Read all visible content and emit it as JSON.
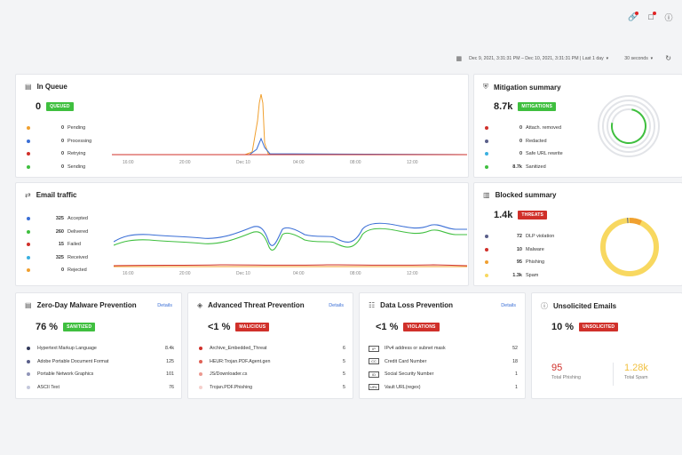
{
  "top_icons": [
    "link-icon",
    "notification-icon",
    "help-icon"
  ],
  "toolbar": {
    "range": "Dec 9, 2021, 3:31:31 PM – Dec 10, 2021, 3:31:31 PM | Last 1 day",
    "interval": "30 seconds"
  },
  "queue": {
    "title": "In Queue",
    "value": "0",
    "badge": "QUEUED",
    "badge_color": "#3fbf3f",
    "legend": [
      {
        "v": "0",
        "l": "Pending",
        "c": "#f0a030"
      },
      {
        "v": "0",
        "l": "Processing",
        "c": "#3b6fd6"
      },
      {
        "v": "0",
        "l": "Retrying",
        "c": "#d0302a"
      },
      {
        "v": "0",
        "l": "Sending",
        "c": "#3fbf3f"
      }
    ],
    "xticks": [
      "16:00",
      "20:00",
      "Dec 10",
      "04:00",
      "08:00",
      "12:00"
    ]
  },
  "mitigation": {
    "title": "Mitigation summary",
    "value": "8.7k",
    "badge": "MITIGATIONS",
    "badge_color": "#3fbf3f",
    "legend": [
      {
        "v": "0",
        "l": "Attach. removed",
        "c": "#d0302a"
      },
      {
        "v": "0",
        "l": "Redacted",
        "c": "#5a5f8a"
      },
      {
        "v": "0",
        "l": "Safe URL rewrite",
        "c": "#3ab0e0"
      },
      {
        "v": "8.7k",
        "l": "Sanitized",
        "c": "#3fbf3f"
      }
    ]
  },
  "traffic": {
    "title": "Email traffic",
    "legend": [
      {
        "v": "325",
        "l": "Accepted",
        "c": "#3b6fd6"
      },
      {
        "v": "260",
        "l": "Delivered",
        "c": "#3fbf3f"
      },
      {
        "v": "15",
        "l": "Failed",
        "c": "#d0302a"
      },
      {
        "v": "325",
        "l": "Received",
        "c": "#3ab0e0"
      },
      {
        "v": "0",
        "l": "Rejected",
        "c": "#f0a030"
      }
    ],
    "xticks": [
      "16:00",
      "20:00",
      "Dec 10",
      "04:00",
      "08:00",
      "12:00"
    ]
  },
  "blocked": {
    "title": "Blocked summary",
    "value": "1.4k",
    "badge": "THREATS",
    "badge_color": "#d0302a",
    "legend": [
      {
        "v": "72",
        "l": "DLP violation",
        "c": "#5a5f8a"
      },
      {
        "v": "10",
        "l": "Malware",
        "c": "#d0302a"
      },
      {
        "v": "95",
        "l": "Phishing",
        "c": "#f0a030"
      },
      {
        "v": "1.3k",
        "l": "Spam",
        "c": "#f8d860"
      }
    ]
  },
  "zeroday": {
    "title": "Zero-Day Malware Prevention",
    "details": "Details",
    "value": "76 %",
    "badge": "SANITIZED",
    "badge_color": "#3fbf3f",
    "rows": [
      {
        "n": "Hypertext Markup Language",
        "v": "8.4k",
        "c": "#333a5a"
      },
      {
        "n": "Adobe Portable Document Format",
        "v": "125",
        "c": "#5a5f8a"
      },
      {
        "n": "Portable Network Graphics",
        "v": "101",
        "c": "#9095b8"
      },
      {
        "n": "ASCII Text",
        "v": "76",
        "c": "#c4c8dc"
      }
    ]
  },
  "advanced": {
    "title": "Advanced Threat Prevention",
    "details": "Details",
    "value": "<1 %",
    "badge": "MALICIOUS",
    "badge_color": "#d0302a",
    "rows": [
      {
        "n": "Archive_Embedded_Threat",
        "v": "6",
        "c": "#d0302a"
      },
      {
        "n": "HEUR:Trojan.PDF.Agent.gen",
        "v": "5",
        "c": "#e06055"
      },
      {
        "n": "JS/Downloader.cs",
        "v": "5",
        "c": "#ec9990"
      },
      {
        "n": "Trojan.PDF.Phishing",
        "v": "5",
        "c": "#f6d0cc"
      }
    ]
  },
  "dlp": {
    "title": "Data Loss Prevention",
    "details": "Details",
    "value": "<1 %",
    "badge": "VIOLATIONS",
    "badge_color": "#d0302a",
    "rows": [
      {
        "n": "IPv4 address or subnet mask",
        "v": "52",
        "i": "IP"
      },
      {
        "n": "Credit Card Number",
        "v": "18",
        "i": "CC"
      },
      {
        "n": "Social Security Number",
        "v": "1",
        "i": "ID"
      },
      {
        "n": "Vault URL(regex)",
        "v": "1",
        "i": "URL"
      }
    ]
  },
  "unsolicited": {
    "title": "Unsolicited Emails",
    "value": "10 %",
    "badge": "UNSOLICITED",
    "badge_color": "#d0302a",
    "phishing_value": "95",
    "phishing_label": "Total Phishing",
    "phishing_color": "#d0302a",
    "spam_value": "1.28k",
    "spam_label": "Total Spam",
    "spam_color": "#f0c040"
  }
}
